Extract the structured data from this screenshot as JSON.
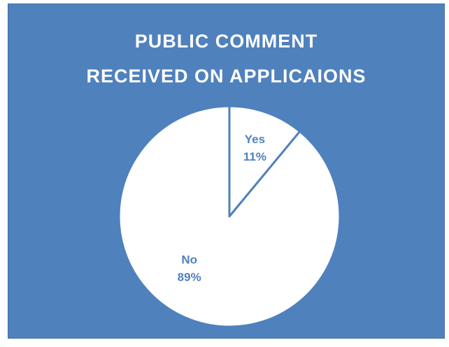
{
  "chart_data": {
    "type": "pie",
    "title_lines": [
      "PUBLIC COMMENT",
      "RECEIVED ON APPLICAIONS"
    ],
    "slices": [
      {
        "label": "Yes",
        "value": 11,
        "percent_label": "11%"
      },
      {
        "label": "No",
        "value": 89,
        "percent_label": "89%"
      }
    ],
    "legend": "none",
    "colors": {
      "background": "#4f81bd",
      "slice_fill": "#ffffff",
      "slice_border": "#4f81bd",
      "label_text": "#4f81bd",
      "title_text": "#ffffff"
    }
  }
}
